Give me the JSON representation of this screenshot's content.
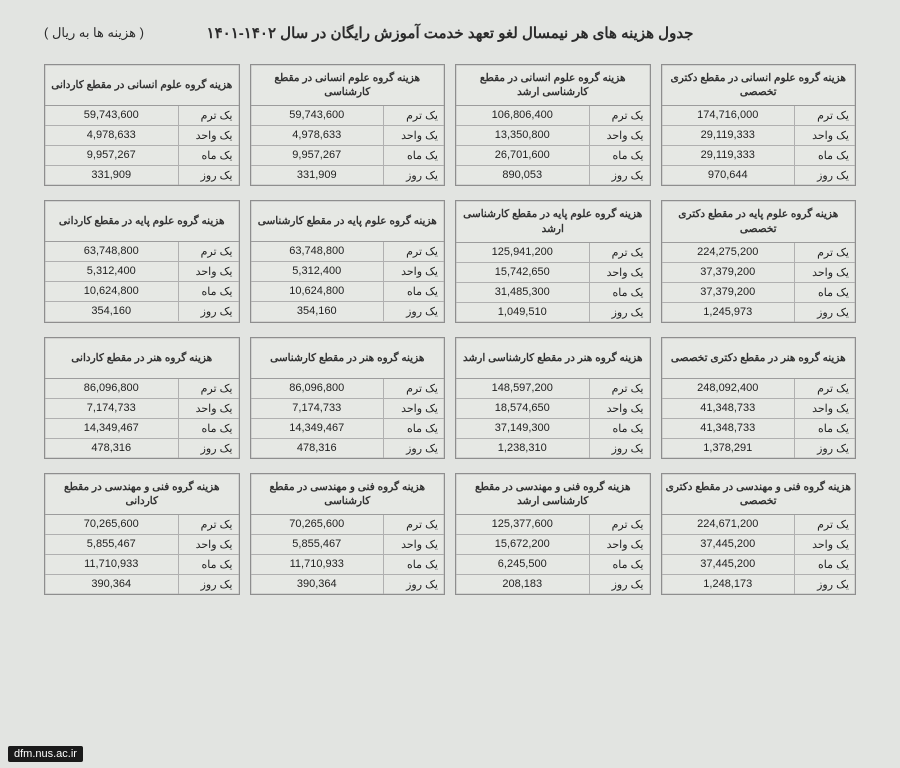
{
  "title": "جدول هزینه های هر نیمسال لغو تعهد خدمت آموزش رایگان در سال ۱۴۰۲-۱۴۰۱",
  "currency_note": "( هزینه ها به ریال )",
  "row_labels": [
    "یک ترم",
    "یک واحد",
    "یک ماه",
    "یک روز"
  ],
  "watermark": "dfm.nus.ac.ir",
  "style": {
    "page_bg": "#e2e4e1",
    "border_color": "#8e8e8e",
    "inner_border": "#b0b0b0",
    "text_color": "#2b2b2b",
    "title_fontsize": 15,
    "box_title_fontsize": 10.5,
    "cell_fontsize": 11,
    "grid_cols": 4,
    "grid_rows": 4,
    "col_gap": 10,
    "row_gap": 14
  },
  "boxes": [
    {
      "title": "هزینه گروه علوم انسانی  در مقطع دکتری تخصصی",
      "values": [
        "174,716,000",
        "29,119,333",
        "29,119,333",
        "970,644"
      ]
    },
    {
      "title": "هزینه گروه علوم انسانی  در مقطع کارشناسی ارشد",
      "values": [
        "106,806,400",
        "13,350,800",
        "26,701,600",
        "890,053"
      ]
    },
    {
      "title": "هزینه گروه علوم انسانی  در مقطع کارشناسی",
      "values": [
        "59,743,600",
        "4,978,633",
        "9,957,267",
        "331,909"
      ]
    },
    {
      "title": "هزینه گروه علوم انسانی  در مقطع کاردانی",
      "values": [
        "59,743,600",
        "4,978,633",
        "9,957,267",
        "331,909"
      ]
    },
    {
      "title": "هزینه گروه علوم پایه در مقطع دکتری تخصصی",
      "values": [
        "224,275,200",
        "37,379,200",
        "37,379,200",
        "1,245,973"
      ]
    },
    {
      "title": "هزینه گروه علوم پایه در مقطع کارشناسی ارشد",
      "values": [
        "125,941,200",
        "15,742,650",
        "31,485,300",
        "1,049,510"
      ]
    },
    {
      "title": "هزینه گروه علوم پایه در مقطع کارشناسی",
      "values": [
        "63,748,800",
        "5,312,400",
        "10,624,800",
        "354,160"
      ]
    },
    {
      "title": "هزینه گروه علوم پایه در مقطع کاردانی",
      "values": [
        "63,748,800",
        "5,312,400",
        "10,624,800",
        "354,160"
      ]
    },
    {
      "title": "هزینه گروه هنر در مقطع دکتری تخصصی",
      "values": [
        "248,092,400",
        "41,348,733",
        "41,348,733",
        "1,378,291"
      ]
    },
    {
      "title": "هزینه گروه هنر در مقطع کارشناسی ارشد",
      "values": [
        "148,597,200",
        "18,574,650",
        "37,149,300",
        "1,238,310"
      ]
    },
    {
      "title": "هزینه گروه هنر در مقطع کارشناسی",
      "values": [
        "86,096,800",
        "7,174,733",
        "14,349,467",
        "478,316"
      ]
    },
    {
      "title": "هزینه گروه هنر در مقطع کاردانی",
      "values": [
        "86,096,800",
        "7,174,733",
        "14,349,467",
        "478,316"
      ]
    },
    {
      "title": "هزینه گروه فنی و مهندسی در مقطع دکتری تخصصی",
      "values": [
        "224,671,200",
        "37,445,200",
        "37,445,200",
        "1,248,173"
      ]
    },
    {
      "title": "هزینه گروه فنی و مهندسی در مقطع کارشناسی ارشد",
      "values": [
        "125,377,600",
        "15,672,200",
        "6,245,500",
        "208,183"
      ]
    },
    {
      "title": "هزینه گروه فنی و مهندسی در مقطع کارشناسی",
      "values": [
        "70,265,600",
        "5,855,467",
        "11,710,933",
        "390,364"
      ]
    },
    {
      "title": "هزینه گروه فنی و مهندسی در مقطع کاردانی",
      "values": [
        "70,265,600",
        "5,855,467",
        "11,710,933",
        "390,364"
      ]
    }
  ]
}
